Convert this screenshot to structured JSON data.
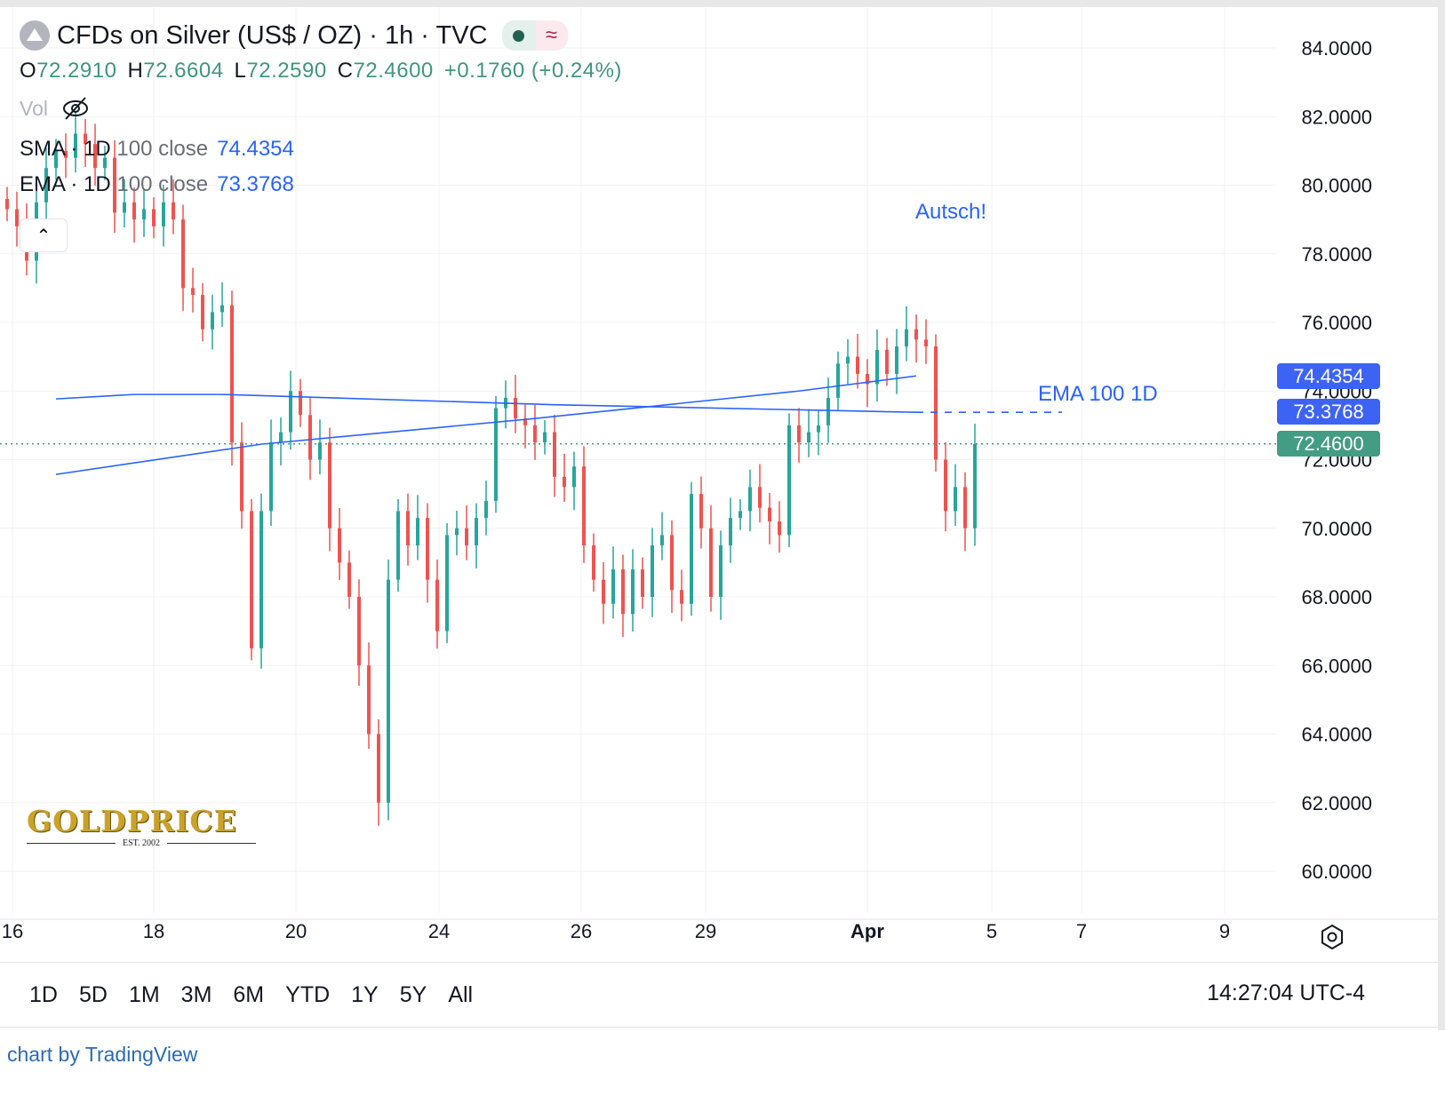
{
  "header": {
    "title": "CFDs on Silver (US$ / OZ) · 1h · TVC",
    "ohlc": {
      "o_label": "O",
      "o": "72.2910",
      "h_label": "H",
      "h": "72.6604",
      "l_label": "L",
      "l": "72.2590",
      "c_label": "C",
      "c": "72.4600",
      "change": "+0.1760 (+0.24%)"
    },
    "vol_label": "Vol",
    "indicators": [
      {
        "name": "SMA",
        "tf": "· 1D",
        "params": "100 close",
        "value": "74.4354"
      },
      {
        "name": "EMA",
        "tf": "· 1D",
        "params": "100 close",
        "value": "73.3768"
      }
    ]
  },
  "annotations": {
    "note": "Autsch!",
    "ema_label": "EMA 100 1D"
  },
  "price_labels": {
    "sma": "74.4354",
    "ema": "73.3768",
    "last": "72.4600"
  },
  "logo": {
    "text": "GOLDPRICE",
    "sub": "EST. 2002"
  },
  "toolbar": {
    "ranges": [
      "1D",
      "5D",
      "1M",
      "3M",
      "6M",
      "YTD",
      "1Y",
      "5Y",
      "All"
    ],
    "clock": "14:27:04 UTC-4"
  },
  "credit": "chart by TradingView",
  "colors": {
    "up": "#26a69a",
    "down": "#ef5350",
    "ma": "#2962ff",
    "last": "#439c84"
  },
  "chart_data": {
    "type": "candlestick",
    "ylim": [
      60,
      84
    ],
    "yticks": [
      "84.0000",
      "82.0000",
      "80.0000",
      "78.0000",
      "76.0000",
      "74.0000",
      "72.0000",
      "70.0000",
      "68.0000",
      "66.0000",
      "64.0000",
      "62.0000",
      "60.0000"
    ],
    "xticks": [
      "16",
      "18",
      "20",
      "24",
      "26",
      "29",
      "Apr",
      "5",
      "7",
      "9"
    ],
    "closes": [
      79.3,
      78.8,
      77.8,
      79.5,
      80.5,
      81,
      80.8,
      81.5,
      81.2,
      80.5,
      80.8,
      79.2,
      79.5,
      79,
      79.3,
      78.8,
      79.5,
      79,
      77,
      76.8,
      75.8,
      76.3,
      76.5,
      72.5,
      70.5,
      66.5,
      70.5,
      72.5,
      72.8,
      74,
      73.3,
      72,
      72.5,
      70,
      69,
      68,
      66,
      64,
      62,
      68.5,
      70.5,
      69.5,
      70.3,
      68.5,
      67,
      69.8,
      70,
      69.5,
      70.3,
      70.8,
      73.5,
      73.8,
      73.2,
      73,
      72.5,
      72.8,
      71.5,
      71.2,
      71.8,
      69.5,
      68.5,
      67.8,
      68.8,
      67.5,
      68.8,
      68,
      69.5,
      69.8,
      68.2,
      67.8,
      71,
      70,
      68,
      69.5,
      70.3,
      70.5,
      71.2,
      70.6,
      70.2,
      69.8,
      73,
      72.5,
      72.8,
      73,
      73.8,
      74.8,
      75,
      74.5,
      74.2,
      75.2,
      74.5,
      75.3,
      75.8,
      75.5,
      75.3,
      72,
      70.5,
      71.2,
      70,
      72.46
    ],
    "sma_100_1d": [
      [
        5,
        71.57
      ],
      [
        26,
        72.45
      ],
      [
        54,
        73.2
      ],
      [
        81,
        74.0
      ],
      [
        93,
        74.44
      ]
    ],
    "ema_100_1d": [
      [
        5,
        73.77
      ],
      [
        13,
        73.9
      ],
      [
        22,
        73.9
      ],
      [
        56,
        73.6
      ],
      [
        93,
        73.38
      ]
    ],
    "last_price": 72.46
  }
}
